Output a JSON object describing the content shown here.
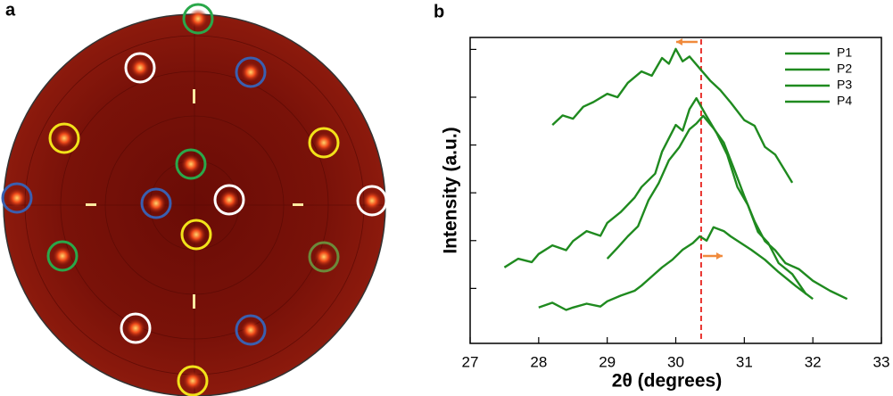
{
  "panel_labels": [
    "a",
    "b"
  ],
  "chart_data": {
    "type": "line",
    "xlabel": "2θ (degrees)",
    "ylabel": "Intensity (a.u.)",
    "xlim": [
      27,
      33
    ],
    "xticks": [
      27,
      28,
      29,
      30,
      31,
      32,
      33
    ],
    "ylim": [
      -0.15,
      6.25
    ],
    "yticks": [
      1,
      2,
      3,
      4,
      5,
      6
    ],
    "legend": "upper right",
    "vline_x": 30.37,
    "vline_color": "#e8322d",
    "series": [
      {
        "name": "P1",
        "color": "#1f8a1f",
        "x": [
          28.2,
          28.35,
          28.5,
          28.65,
          28.8,
          29.0,
          29.15,
          29.3,
          29.5,
          29.65,
          29.8,
          29.9,
          30.0,
          30.1,
          30.2,
          30.35,
          30.5,
          30.65,
          30.8,
          31.0,
          31.15,
          31.3,
          31.45,
          31.6,
          31.7
        ],
        "values": [
          4.42,
          4.62,
          4.55,
          4.8,
          4.9,
          5.07,
          5.0,
          5.3,
          5.54,
          5.45,
          5.82,
          5.7,
          6.01,
          5.75,
          5.85,
          5.6,
          5.35,
          5.15,
          4.89,
          4.52,
          4.4,
          3.96,
          3.8,
          3.45,
          3.21
        ]
      },
      {
        "name": "P2",
        "color": "#1f8a1f",
        "x": [
          27.5,
          27.7,
          27.9,
          28.0,
          28.2,
          28.4,
          28.5,
          28.7,
          28.9,
          29.0,
          29.2,
          29.4,
          29.5,
          29.7,
          29.8,
          30.0,
          30.1,
          30.2,
          30.3,
          30.45,
          30.6,
          30.75,
          30.9,
          31.05,
          31.2,
          31.35,
          31.5,
          31.7,
          31.9
        ],
        "values": [
          1.44,
          1.62,
          1.55,
          1.72,
          1.9,
          1.8,
          1.99,
          2.2,
          2.1,
          2.37,
          2.6,
          2.9,
          3.12,
          3.4,
          3.86,
          4.42,
          4.3,
          4.75,
          4.98,
          4.6,
          4.24,
          3.8,
          3.12,
          2.75,
          2.18,
          1.95,
          1.53,
          1.3,
          0.88
        ]
      },
      {
        "name": "P3",
        "color": "#1f8a1f",
        "x": [
          29.0,
          29.15,
          29.3,
          29.45,
          29.6,
          29.75,
          29.9,
          30.05,
          30.2,
          30.3,
          30.4,
          30.55,
          30.7,
          30.85,
          31.0,
          31.15,
          31.3,
          31.45,
          31.6,
          31.8,
          32.0,
          32.25,
          32.5
        ],
        "values": [
          1.62,
          1.85,
          2.09,
          2.3,
          2.84,
          3.2,
          3.68,
          3.95,
          4.33,
          4.45,
          4.61,
          4.35,
          4.05,
          3.5,
          2.93,
          2.4,
          1.99,
          1.8,
          1.53,
          1.4,
          1.16,
          0.95,
          0.78
        ]
      },
      {
        "name": "P4",
        "color": "#1f8a1f",
        "x": [
          28.0,
          28.2,
          28.4,
          28.5,
          28.7,
          28.9,
          29.0,
          29.2,
          29.4,
          29.5,
          29.65,
          29.8,
          29.95,
          30.1,
          30.25,
          30.35,
          30.45,
          30.55,
          30.7,
          30.8,
          30.95,
          31.1,
          31.3,
          31.5,
          31.75,
          32.0
        ],
        "values": [
          0.6,
          0.7,
          0.55,
          0.6,
          0.68,
          0.62,
          0.73,
          0.85,
          0.95,
          1.06,
          1.25,
          1.44,
          1.6,
          1.81,
          1.95,
          2.09,
          2.0,
          2.28,
          2.2,
          2.09,
          1.95,
          1.81,
          1.6,
          1.34,
          1.05,
          0.78
        ]
      }
    ]
  }
}
